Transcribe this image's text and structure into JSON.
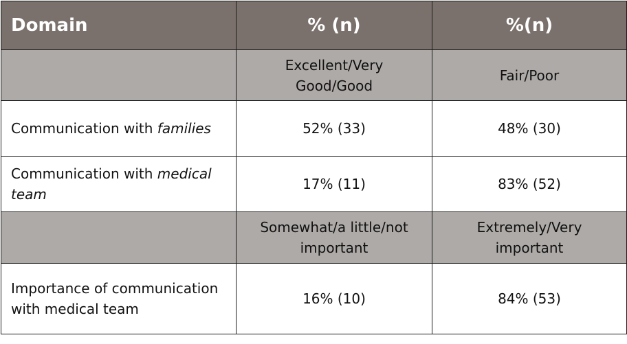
{
  "header": {
    "domain": "Domain",
    "col2": "% (n)",
    "col3": "%(n)"
  },
  "rating_subheader": {
    "positive": "Excellent/Very Good/Good",
    "negative": "Fair/Poor"
  },
  "rows_rating": [
    {
      "label_prefix": "Communication with ",
      "label_emph": "families",
      "positive": "52% (33)",
      "negative": "48% (30)"
    },
    {
      "label_prefix": "Communication with ",
      "label_emph": "medical team",
      "positive": "17% (11)",
      "negative": "83% (52)"
    }
  ],
  "importance_subheader": {
    "low": "Somewhat/a little/not important",
    "high": "Extremely/Very important"
  },
  "rows_importance": [
    {
      "label": "Importance of communication with medical team",
      "low": "16% (10)",
      "high": "84% (53)"
    }
  ]
}
